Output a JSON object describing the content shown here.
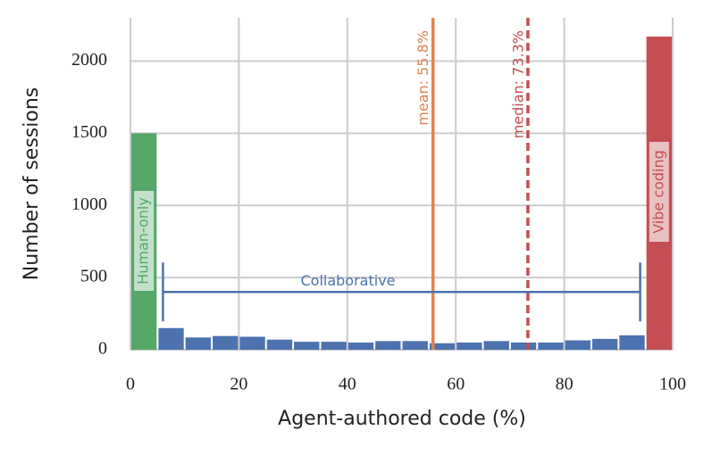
{
  "chart_data": {
    "type": "histogram",
    "xlabel": "Agent-authored code (%)",
    "ylabel": "Number of sessions",
    "bins": [
      0,
      5,
      10,
      15,
      20,
      25,
      30,
      35,
      40,
      45,
      50,
      55,
      60,
      65,
      70,
      75,
      80,
      85,
      90,
      95,
      100
    ],
    "values": [
      1500,
      150,
      85,
      95,
      90,
      70,
      55,
      55,
      50,
      60,
      60,
      45,
      50,
      60,
      50,
      50,
      65,
      75,
      100,
      2170
    ],
    "colors": [
      "#55a868",
      "#4c72b0",
      "#4c72b0",
      "#4c72b0",
      "#4c72b0",
      "#4c72b0",
      "#4c72b0",
      "#4c72b0",
      "#4c72b0",
      "#4c72b0",
      "#4c72b0",
      "#4c72b0",
      "#4c72b0",
      "#4c72b0",
      "#4c72b0",
      "#4c72b0",
      "#4c72b0",
      "#4c72b0",
      "#4c72b0",
      "#c44e52"
    ],
    "xlim": [
      0,
      100
    ],
    "xticks": [
      0,
      20,
      40,
      60,
      80,
      100
    ],
    "ylim": [
      0,
      2300
    ],
    "yticks": [
      0,
      500,
      1000,
      1500,
      2000
    ],
    "grid": true,
    "vlines": [
      {
        "value": 55.8,
        "label": "mean: 55.8%",
        "color": "#dd8452",
        "dashed": false
      },
      {
        "value": 73.3,
        "label": "median: 73.3%",
        "color": "#c44e52",
        "dashed": true
      }
    ],
    "bracket": {
      "label": "Collaborative",
      "x": [
        6,
        94
      ],
      "y": 400,
      "color": "#4c72b0"
    },
    "bar_labels": [
      {
        "text": "Human-only",
        "bar": 0
      },
      {
        "text": "Vibe coding",
        "bar": 19
      }
    ]
  }
}
